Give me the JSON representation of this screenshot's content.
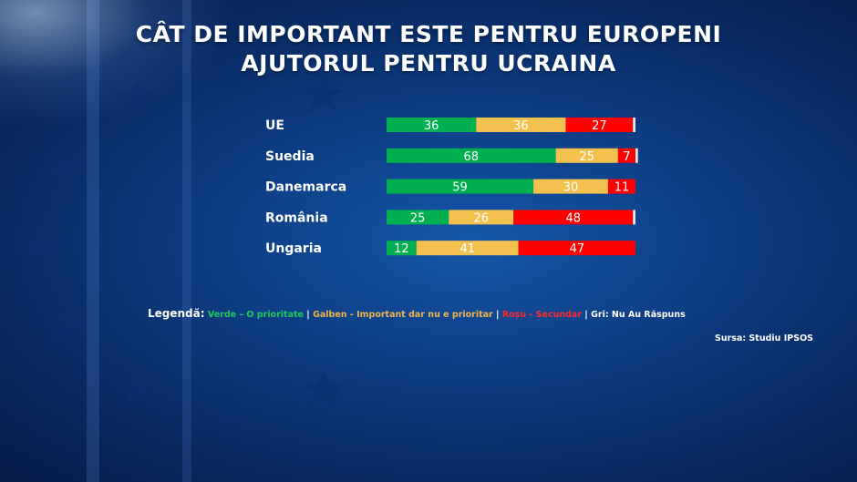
{
  "title_line1": "CÂT DE IMPORTANT ESTE PENTRU EUROPENI",
  "title_line2": "AJUTORUL PENTRU UCRAINA",
  "colors": {
    "green": "#00b050",
    "yellow": "#f2c14e",
    "red": "#ff0000",
    "grey": "#e8e8e8",
    "background": "#0b3a7e"
  },
  "chart_data": {
    "type": "bar",
    "orientation": "horizontal",
    "stacked": true,
    "categories": [
      "UE",
      "Suedia",
      "Danemarca",
      "România",
      "Ungaria"
    ],
    "series": [
      {
        "values": [
          36,
          68,
          59,
          25,
          12
        ]
      },
      {
        "values": [
          36,
          25,
          30,
          26,
          41
        ]
      },
      {
        "values": [
          27,
          7,
          11,
          48,
          47
        ]
      },
      {
        "values": [
          1,
          1,
          0,
          1,
          0
        ]
      }
    ],
    "data_labels": [
      [
        "36",
        "36",
        "27",
        ""
      ],
      [
        "68",
        "25",
        "7",
        ""
      ],
      [
        "59",
        "30",
        "11",
        ""
      ],
      [
        "25",
        "26",
        "48",
        ""
      ],
      [
        "12",
        "41",
        "47",
        ""
      ]
    ],
    "xlim": [
      0,
      100
    ],
    "grid": false
  },
  "legend": {
    "label": "Legendă:",
    "green": "Verde – O prioritate",
    "sep1": " | ",
    "yellow": "Galben - Important dar nu e prioritar",
    "sep2": " | ",
    "red": "Roșu - Secundar",
    "grey": " | Gri: Nu Au Răspuns"
  },
  "source": "Sursa: Studiu IPSOS"
}
